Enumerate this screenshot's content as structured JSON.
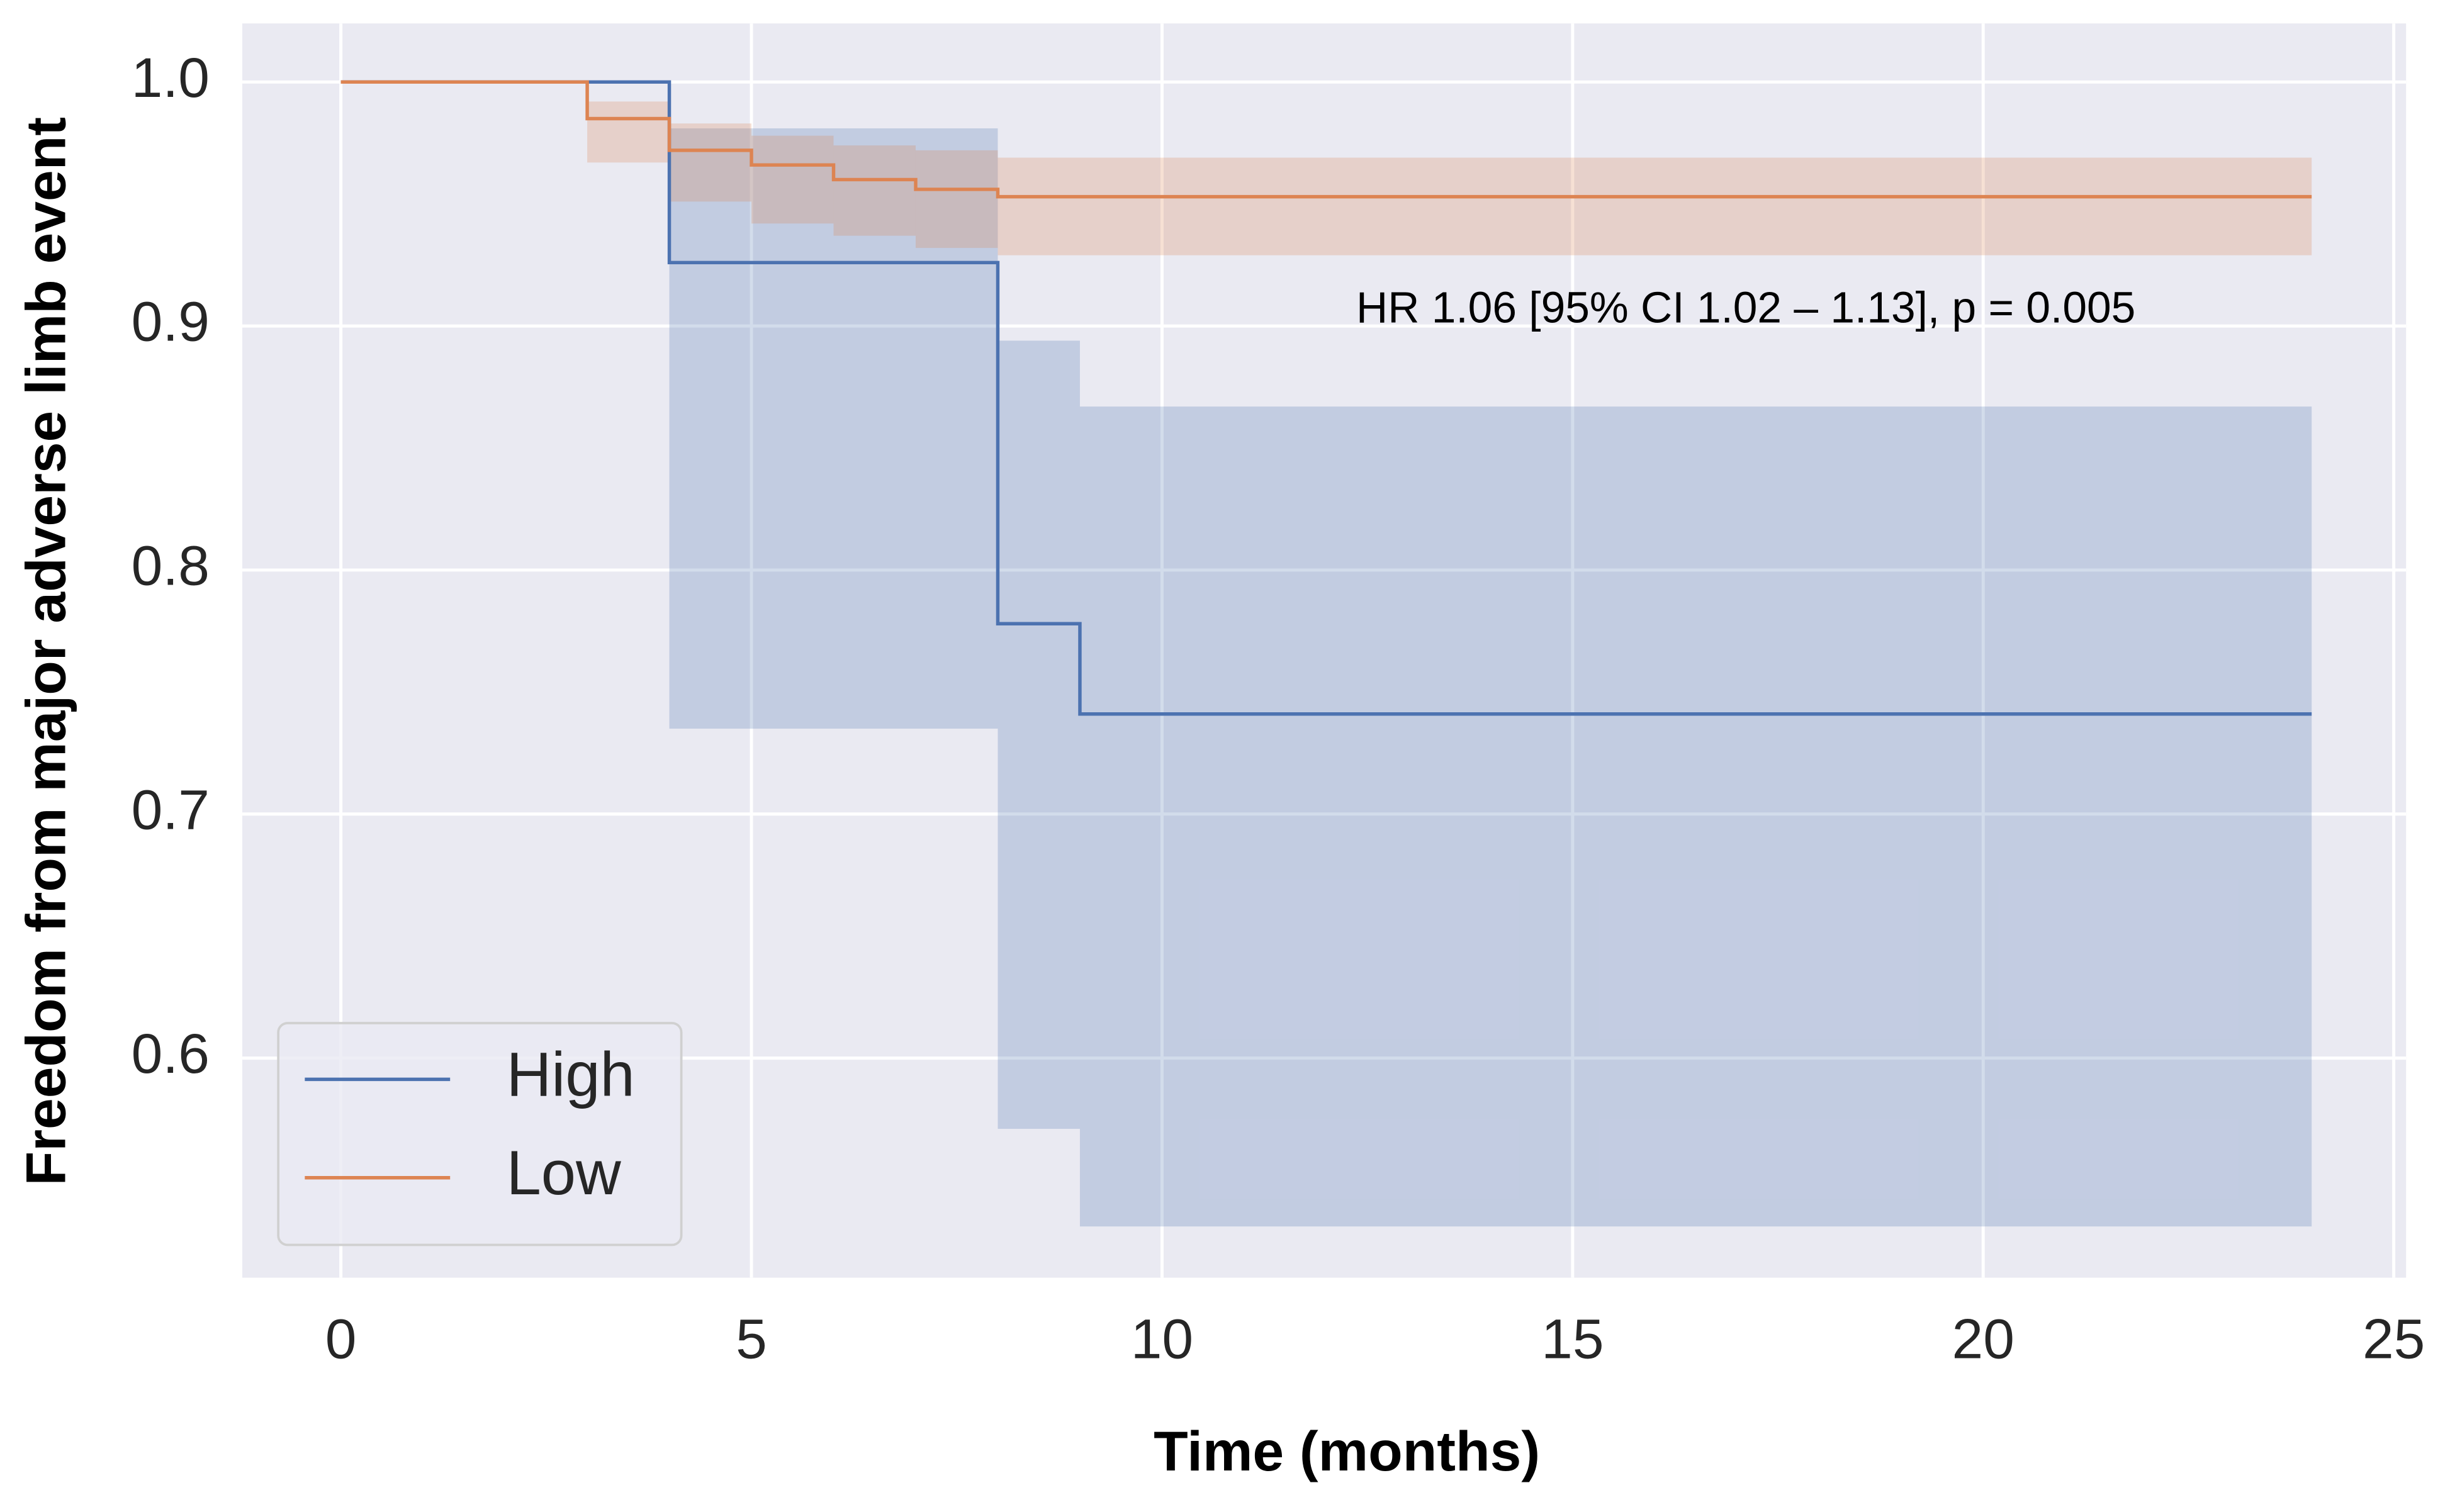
{
  "chart_data": {
    "type": "step",
    "x_label": "Time (months)",
    "y_label": "Freedom from major adverse limb event",
    "annotation": "HR 1.06 [95% CI 1.02 – 1.13], p = 0.005",
    "xlim": [
      -1.2,
      25.15
    ],
    "ylim": [
      0.51,
      1.024
    ],
    "xticks": [
      0,
      5,
      10,
      15,
      20,
      25
    ],
    "yticks": [
      {
        "value": 0.6,
        "label": "0.6"
      },
      {
        "value": 0.7,
        "label": "0.7"
      },
      {
        "value": 0.8,
        "label": "0.8"
      },
      {
        "value": 0.9,
        "label": "0.9"
      },
      {
        "value": 1.0,
        "label": "1.0"
      }
    ],
    "grid": true,
    "legend": "lower left",
    "series": [
      {
        "name": "High",
        "color": "#4c72b0",
        "x": [
          0,
          4,
          8,
          9,
          24
        ],
        "values": [
          1.0,
          0.926,
          0.778,
          0.741,
          0.741
        ],
        "ci_lower": [
          1.0,
          0.735,
          0.571,
          0.531,
          0.531
        ],
        "ci_upper": [
          1.0,
          0.981,
          0.894,
          0.867,
          0.867
        ]
      },
      {
        "name": "Low",
        "color": "#dd8452",
        "x": [
          0,
          3,
          4,
          5,
          6,
          7,
          8,
          24
        ],
        "values": [
          1.0,
          0.985,
          0.972,
          0.966,
          0.96,
          0.956,
          0.953,
          0.953
        ],
        "ci_lower": [
          1.0,
          0.967,
          0.951,
          0.942,
          0.937,
          0.932,
          0.929,
          0.929
        ],
        "ci_upper": [
          1.0,
          0.992,
          0.983,
          0.978,
          0.974,
          0.972,
          0.969,
          0.969
        ]
      }
    ]
  }
}
